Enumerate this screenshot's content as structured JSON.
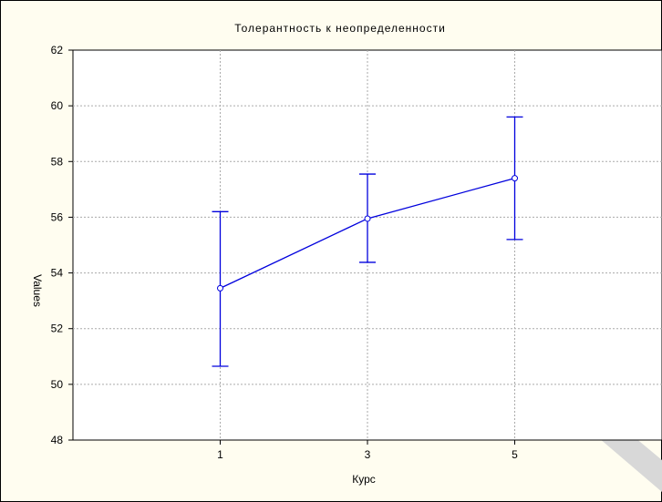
{
  "chart_data": {
    "type": "line",
    "title": "Толерантность к неопределенности",
    "xlabel": "Курс",
    "ylabel": "Values",
    "categories": [
      "1",
      "3",
      "5"
    ],
    "x": [
      1,
      3,
      5
    ],
    "xlim": [
      -1,
      7
    ],
    "ylim": [
      48,
      62
    ],
    "yticks": [
      48,
      50,
      52,
      54,
      56,
      58,
      60,
      62
    ],
    "grid": true,
    "series": [
      {
        "values": [
          53.45,
          55.95,
          57.4
        ],
        "error_lower": [
          50.65,
          54.38,
          55.2
        ],
        "error_upper": [
          56.2,
          57.55,
          59.6
        ]
      }
    ],
    "colors": {
      "line": "#0000dd",
      "grid": "#aaaaaa",
      "background": "#fffdf0",
      "plot_background": "#ffffff",
      "watermark": "#d8d8d8"
    },
    "watermark_icon": "chevron-left-icon"
  }
}
